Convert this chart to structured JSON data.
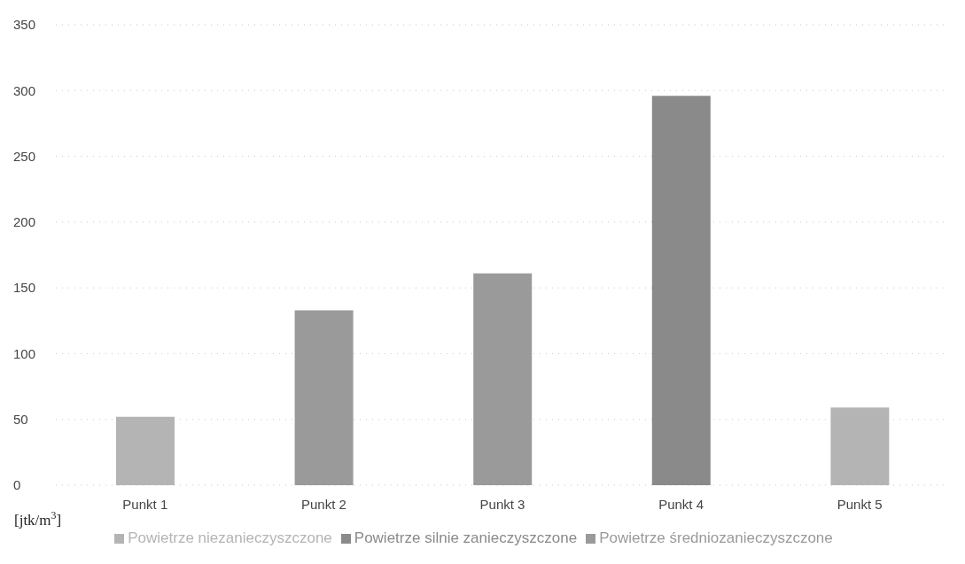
{
  "chart_data": {
    "type": "bar",
    "stacked": true,
    "ylabel": "[jtk/m$^{3}$]",
    "categories": [
      "Punkt 1",
      "Punkt 2",
      "Punkt 3",
      "Punkt 4",
      "Punkt 5"
    ],
    "series": [
      {
        "name": "Powietrze niezanieczyszczone",
        "color": "#b4b4b4",
        "values": [
          52,
          null,
          null,
          null,
          59
        ]
      },
      {
        "name": "Powietrze średniozanieczyszczone",
        "color": "#9a9a9a",
        "values": [
          null,
          133,
          161,
          null,
          null
        ]
      },
      {
        "name": "Powietrze silnie zanieczyszczone",
        "color": "#8a8a8a",
        "values": [
          null,
          null,
          null,
          296,
          null
        ]
      }
    ],
    "ylim": [
      0,
      350
    ],
    "yticks": [
      0,
      50,
      100,
      150,
      200,
      250,
      300,
      350
    ],
    "grid": "y",
    "legend": "bottom"
  }
}
